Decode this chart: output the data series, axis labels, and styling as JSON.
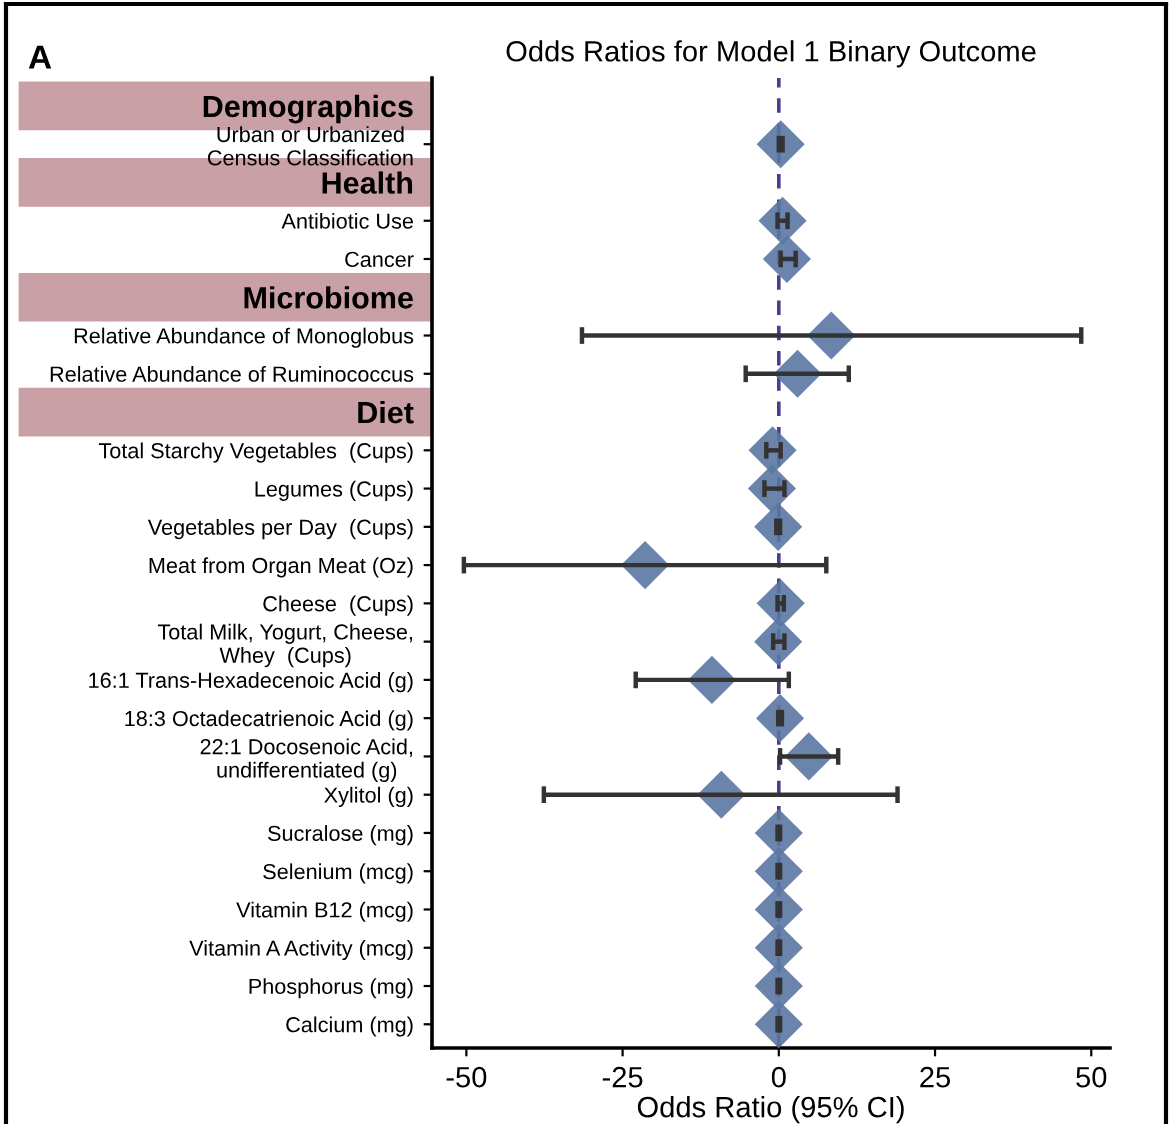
{
  "chart_data": {
    "type": "scatter",
    "title": "Odds Ratios for Model 1 Binary Outcome",
    "xlabel": "Odds Ratio (95% CI)",
    "annotations": [
      "A"
    ],
    "orientation": "horizontal",
    "categories": [
      "Demographics",
      "Urban or Urbanized\nCensus Classification",
      "Health",
      "Antibiotic Use",
      "Cancer",
      "Microbiome",
      "Relative Abundance of Monoglobus",
      "Relative Abundance of Ruminococcus",
      "Diet",
      "Total Starchy Vegetables  (Cups)",
      "Legumes (Cups)",
      "Vegetables per Day  (Cups)",
      "Meat from Organ Meat (Oz)",
      "Cheese  (Cups)",
      "Total Milk, Yogurt, Cheese,\nWhey  (Cups)",
      "16:1 Trans-Hexadecenoic Acid (g)",
      "18:3 Octadecatrienoic Acid (g)",
      "22:1 Docosenoic Acid,\nundifferentiated (g)",
      "Xylitol (g)",
      "Sucralose (mg)",
      "Selenium (mcg)",
      "Vitamin B12 (mcg)",
      "Vitamin A Activity (mcg)",
      "Phosphorus (mg)",
      "Calcium (mg)"
    ],
    "series": [
      {
        "color": "#5b77a3",
        "values": [
          null,
          0.3,
          null,
          0.6,
          1.3,
          null,
          8.4,
          3.0,
          null,
          -1.0,
          -1.1,
          -0.1,
          -21.4,
          0.3,
          -0.1,
          -10.7,
          0.2,
          4.8,
          -9.2,
          0.0,
          0.0,
          0.0,
          0.0,
          0.0,
          0.0
        ],
        "errors": [
          null,
          [
            0.0,
            0.6
          ],
          null,
          [
            -0.2,
            1.4
          ],
          [
            0.3,
            2.7
          ],
          null,
          [
            -31.5,
            48.4
          ],
          [
            -5.3,
            11.2
          ],
          null,
          [
            -2.0,
            0.3
          ],
          [
            -2.3,
            0.9
          ],
          [
            -0.4,
            0.2
          ],
          [
            -50.4,
            7.6
          ],
          [
            -0.2,
            0.8
          ],
          [
            -0.9,
            0.9
          ],
          [
            -22.9,
            1.6
          ],
          [
            -0.1,
            0.5
          ],
          [
            0.2,
            9.5
          ],
          [
            -37.6,
            19.0
          ],
          [
            -0.2,
            0.2
          ],
          [
            -0.2,
            0.2
          ],
          [
            -0.2,
            0.2
          ],
          [
            -0.2,
            0.2
          ],
          [
            -0.2,
            0.2
          ],
          [
            -0.2,
            0.2
          ]
        ]
      }
    ],
    "marker": "diamond",
    "xlim": [
      -55.5,
      53
    ],
    "xticks": [
      -50,
      -25,
      0,
      25,
      50
    ],
    "ref_lines": [
      {
        "axis": "x",
        "value": 0,
        "color": "#4b3f8c",
        "line_style": "dashed"
      }
    ],
    "grid": false,
    "legend": false
  }
}
